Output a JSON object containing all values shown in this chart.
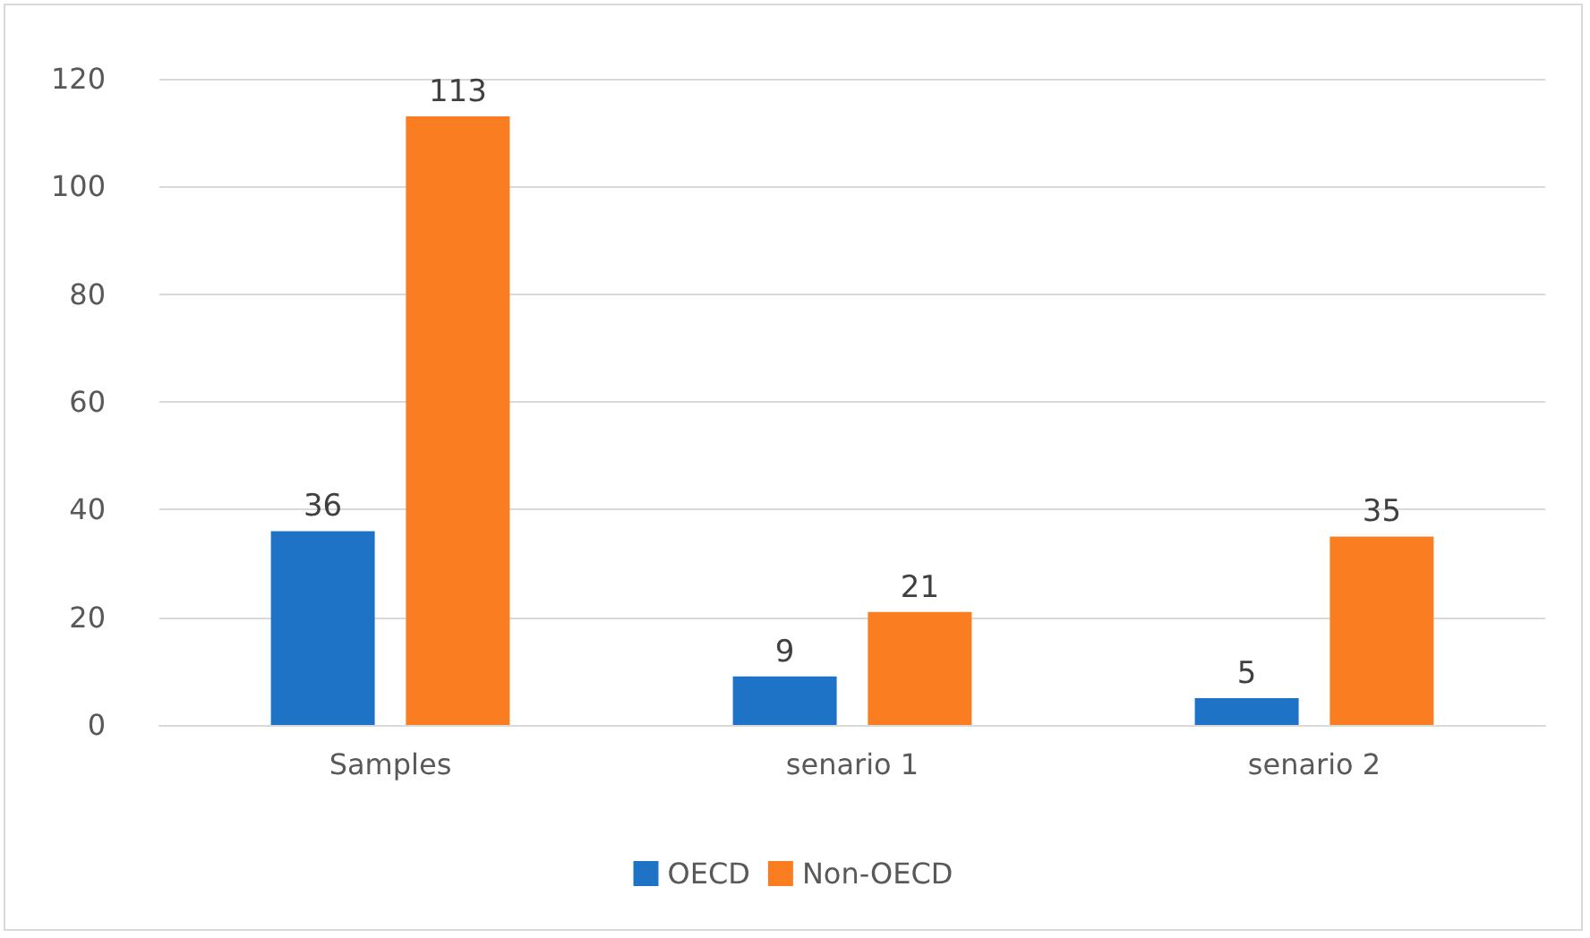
{
  "chart_data": {
    "type": "bar",
    "categories": [
      "Samples",
      "senario 1",
      "senario 2"
    ],
    "series": [
      {
        "name": "OECD",
        "color": "#1f73c6",
        "values": [
          36,
          9,
          5
        ]
      },
      {
        "name": "Non-OECD",
        "color": "#fb7d22",
        "values": [
          113,
          21,
          35
        ]
      }
    ],
    "ylim": [
      0,
      120
    ],
    "yticks": [
      0,
      20,
      40,
      60,
      80,
      100,
      120
    ],
    "grid": "y",
    "legend": "bottom",
    "data_labels": true
  }
}
